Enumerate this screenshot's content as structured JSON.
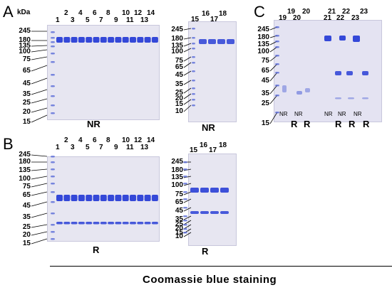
{
  "panels": {
    "A": {
      "letter": "A",
      "unit": "kDa",
      "left_markers": [
        "245",
        "180",
        "135",
        "100",
        "75",
        "65",
        "45",
        "35",
        "25",
        "20",
        "15"
      ],
      "lanes_left": [
        "1",
        "2",
        "3",
        "4",
        "5",
        "6",
        "7",
        "8",
        "9",
        "10",
        "11",
        "12",
        "13",
        "14"
      ],
      "condition_left": "NR",
      "right_markers": [
        "245",
        "180",
        "135",
        "100",
        "75",
        "65",
        "45",
        "35",
        "25",
        "20",
        "15",
        "10"
      ],
      "lanes_right": [
        "15",
        "16",
        "17",
        "18"
      ],
      "condition_right": "NR"
    },
    "B": {
      "letter": "B",
      "left_markers": [
        "245",
        "180",
        "135",
        "100",
        "75",
        "65",
        "45",
        "35",
        "25",
        "20",
        "15"
      ],
      "lanes_left": [
        "1",
        "2",
        "3",
        "4",
        "5",
        "6",
        "7",
        "8",
        "9",
        "10",
        "11",
        "12",
        "13",
        "14"
      ],
      "condition_left": "R",
      "right_markers": [
        "245",
        "180",
        "135",
        "100",
        "75",
        "65",
        "45",
        "35",
        "25",
        "20",
        "15",
        "10"
      ],
      "lanes_right": [
        "15",
        "16",
        "17",
        "18"
      ],
      "condition_right": "R"
    },
    "C": {
      "letter": "C",
      "markers": [
        "245",
        "180",
        "135",
        "100",
        "75",
        "65",
        "45",
        "35",
        "25",
        "15"
      ],
      "lanes": [
        "19",
        "19",
        "20",
        "20",
        "21",
        "21",
        "22",
        "22",
        "23",
        "23"
      ],
      "conditions_small": [
        "NR",
        "NR",
        "NR",
        "NR",
        "NR"
      ],
      "conditions_large": [
        "R",
        "R",
        "R",
        "R",
        "R"
      ]
    }
  },
  "caption": "Coomassie  blue  staining",
  "colors": {
    "gel": "#e7e6f1",
    "band": "#2a3fd6",
    "ladder": "#5a6bd8"
  }
}
